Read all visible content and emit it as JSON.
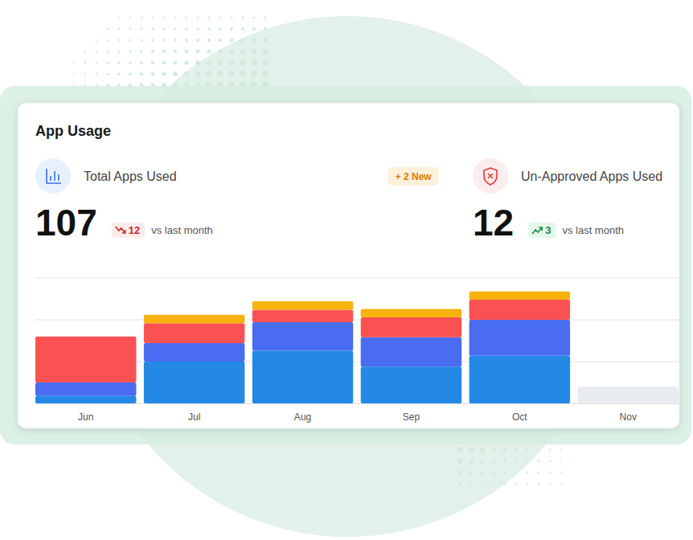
{
  "chart_data": {
    "type": "bar",
    "title": "App Usage",
    "stacked": true,
    "grid": true,
    "tick_labels": "x",
    "categories": [
      "Jun",
      "Jul",
      "Aug",
      "Sep",
      "Oct",
      "Nov"
    ],
    "series": [
      {
        "color": "#2389E4",
        "values": [
          9,
          50,
          63,
          44,
          57,
          0
        ]
      },
      {
        "color": "#4A6CF0",
        "values": [
          16,
          22,
          34,
          35,
          43,
          0
        ]
      },
      {
        "color": "#FA5252",
        "values": [
          55,
          24,
          15,
          24,
          24,
          0
        ]
      },
      {
        "color": "#F8B20E",
        "values": [
          0,
          10,
          10,
          10,
          10,
          0
        ]
      },
      {
        "color": "#E8ECF0",
        "values": [
          0,
          0,
          0,
          0,
          0,
          20
        ]
      }
    ],
    "ylim": [
      0,
      150
    ],
    "yticks": [
      0,
      50,
      100,
      150
    ]
  },
  "stats": [
    {
      "label": "Total Apps Used",
      "value": 107,
      "change": 12,
      "direction": "down",
      "change_note": "vs last month",
      "badge": "+ 2 New"
    },
    {
      "label": "Un-Approved Apps Used",
      "value": 12,
      "change": 3,
      "direction": "up",
      "change_note": "vs last month"
    }
  ]
}
